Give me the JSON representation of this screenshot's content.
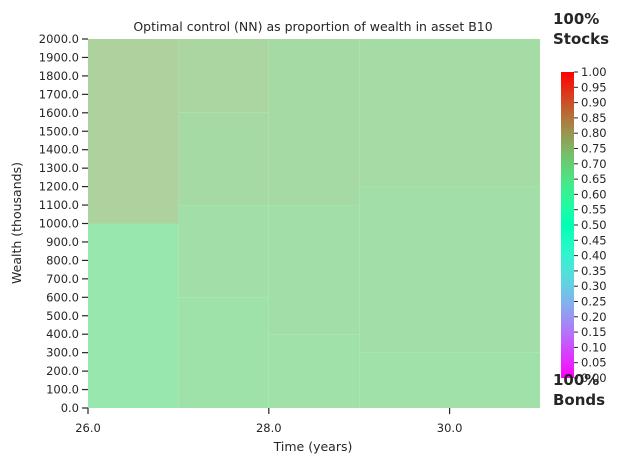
{
  "chart_data": {
    "type": "heatmap",
    "title": "Optimal control (NN) as proportion of wealth in asset B10",
    "xlabel": "Time (years)",
    "ylabel": "Wealth (thousands)",
    "x_tick_labels": [
      "26.0",
      "28.0",
      "30.0"
    ],
    "x_tick_values": [
      26,
      28,
      30
    ],
    "xlim": [
      26,
      31
    ],
    "ylim": [
      0,
      2000
    ],
    "y_tick_labels": [
      "0.0",
      "100.0",
      "200.0",
      "300.0",
      "400.0",
      "500.0",
      "600.0",
      "700.0",
      "800.0",
      "900.0",
      "1000.0",
      "1100.0",
      "1200.0",
      "1300.0",
      "1400.0",
      "1500.0",
      "1600.0",
      "1700.0",
      "1800.0",
      "1900.0",
      "2000.0"
    ],
    "y_tick_values": [
      0,
      100,
      200,
      300,
      400,
      500,
      600,
      700,
      800,
      900,
      1000,
      1100,
      1200,
      1300,
      1400,
      1500,
      1600,
      1700,
      1800,
      1900,
      2000
    ],
    "colormap": "rainbow",
    "colorbar": {
      "range": [
        0,
        1
      ],
      "tick_labels": [
        "0.00",
        "0.05",
        "0.10",
        "0.15",
        "0.20",
        "0.25",
        "0.30",
        "0.35",
        "0.40",
        "0.45",
        "0.50",
        "0.55",
        "0.60",
        "0.65",
        "0.70",
        "0.75",
        "0.80",
        "0.85",
        "0.90",
        "0.95",
        "1.00"
      ],
      "tick_values": [
        0,
        0.05,
        0.1,
        0.15,
        0.2,
        0.25,
        0.3,
        0.35,
        0.4,
        0.45,
        0.5,
        0.55,
        0.6,
        0.65,
        0.7,
        0.75,
        0.8,
        0.85,
        0.9,
        0.95,
        1.0
      ]
    },
    "top_label": "100%\nStocks",
    "bottom_label": "100%\nBonds",
    "cells": [
      {
        "x0": 26,
        "x1": 27,
        "y0": 1000,
        "y1": 2000,
        "value": 0.745
      },
      {
        "x0": 26,
        "x1": 27,
        "y0": 0,
        "y1": 1000,
        "value": 0.675
      },
      {
        "x0": 27,
        "x1": 28,
        "y0": 1600,
        "y1": 2000,
        "value": 0.735
      },
      {
        "x0": 27,
        "x1": 28,
        "y0": 1100,
        "y1": 1600,
        "value": 0.72
      },
      {
        "x0": 27,
        "x1": 28,
        "y0": 600,
        "y1": 1100,
        "value": 0.705
      },
      {
        "x0": 27,
        "x1": 28,
        "y0": 0,
        "y1": 600,
        "value": 0.695
      },
      {
        "x0": 28,
        "x1": 29,
        "y0": 1100,
        "y1": 2000,
        "value": 0.72
      },
      {
        "x0": 28,
        "x1": 29,
        "y0": 400,
        "y1": 1100,
        "value": 0.705
      },
      {
        "x0": 28,
        "x1": 29,
        "y0": 0,
        "y1": 400,
        "value": 0.7
      },
      {
        "x0": 29,
        "x1": 31,
        "y0": 1200,
        "y1": 2000,
        "value": 0.715
      },
      {
        "x0": 29,
        "x1": 31,
        "y0": 300,
        "y1": 1200,
        "value": 0.705
      },
      {
        "x0": 29,
        "x1": 31,
        "y0": 0,
        "y1": 300,
        "value": 0.7
      }
    ]
  }
}
